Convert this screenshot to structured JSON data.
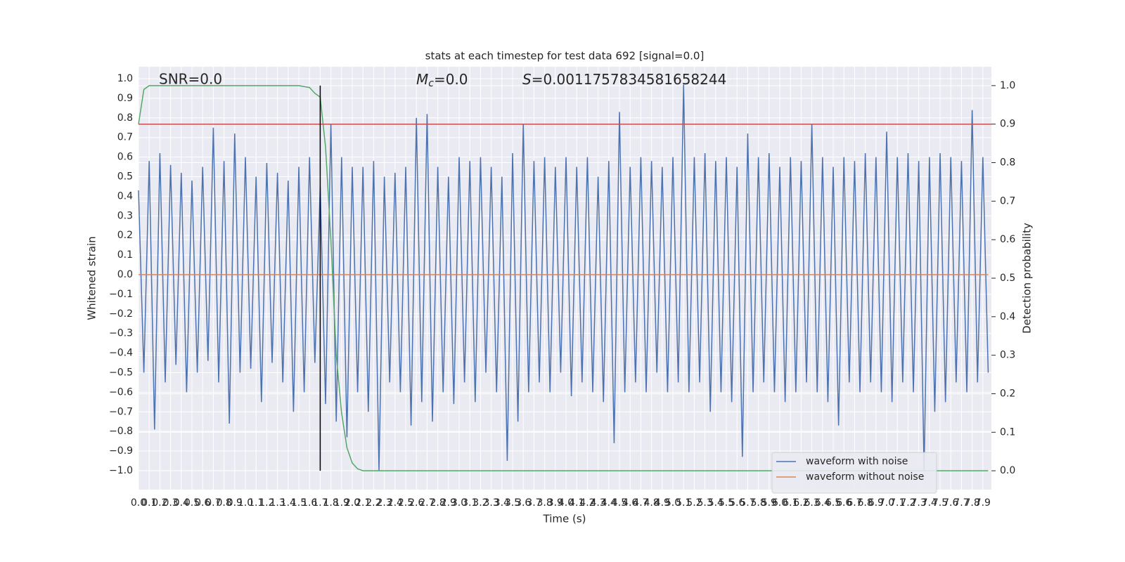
{
  "chart_data": {
    "type": "line",
    "title": "stats at each timestep for test data 692 [signal=0.0]",
    "xlabel": "Time (s)",
    "ylabel": "Whitened strain",
    "y2label": "Detection probability",
    "annotations": [
      {
        "text": "SNR=0.0"
      },
      {
        "symbol": "M",
        "subscript": "c",
        "text": "=0.0"
      },
      {
        "symbol": "S",
        "text": "=0.0011757834581658244"
      }
    ],
    "grid": true,
    "legend": "lower right",
    "xlim": [
      0,
      7.98
    ],
    "ylim": [
      -1.097,
      1.061
    ],
    "y2lim": [
      -0.049,
      1.049
    ],
    "xticks": [
      {
        "value": 0,
        "label": "0.0"
      },
      0.1,
      0.2,
      0.3,
      0.4,
      0.5,
      0.6,
      0.7,
      0.8,
      0.9,
      {
        "value": 1,
        "label": "1.0"
      },
      1.1,
      1.2,
      1.3,
      1.4,
      1.5,
      1.6,
      1.7,
      1.8,
      1.9,
      {
        "value": 2,
        "label": "2.0"
      },
      2.1,
      2.2,
      2.3,
      2.4,
      2.5,
      2.6,
      2.7,
      2.8,
      2.9,
      {
        "value": 3,
        "label": "3.0"
      },
      3.1,
      3.2,
      3.3,
      3.4,
      3.5,
      3.6,
      3.7,
      3.8,
      3.9,
      {
        "value": 4,
        "label": "4.0"
      },
      4.1,
      4.2,
      4.3,
      4.4,
      4.5,
      4.6,
      4.7,
      4.8,
      4.9,
      {
        "value": 5,
        "label": "5.0"
      },
      5.1,
      5.2,
      5.3,
      5.4,
      5.5,
      5.6,
      5.7,
      5.8,
      5.9,
      {
        "value": 6,
        "label": "6.0"
      },
      6.1,
      6.2,
      6.3,
      6.4,
      6.5,
      6.6,
      6.7,
      6.8,
      6.9,
      {
        "value": 7,
        "label": "7.0"
      },
      7.1,
      7.2,
      7.3,
      7.4,
      7.5,
      7.6,
      7.7,
      7.8,
      7.9
    ],
    "yticks": [
      {
        "value": -1,
        "label": "−1.0"
      },
      {
        "value": -0.9,
        "label": "−0.9"
      },
      {
        "value": -0.8,
        "label": "−0.8"
      },
      {
        "value": -0.7,
        "label": "−0.7"
      },
      {
        "value": -0.6,
        "label": "−0.6"
      },
      {
        "value": -0.5,
        "label": "−0.5"
      },
      {
        "value": -0.4,
        "label": "−0.4"
      },
      {
        "value": -0.3,
        "label": "−0.3"
      },
      {
        "value": -0.2,
        "label": "−0.2"
      },
      {
        "value": -0.1,
        "label": "−0.1"
      },
      {
        "value": 0,
        "label": "0.0"
      },
      0.1,
      0.2,
      0.3,
      0.4,
      0.5,
      0.6,
      0.7,
      0.8,
      0.9,
      {
        "value": 1,
        "label": "1.0"
      }
    ],
    "y2ticks": [
      {
        "value": 0,
        "label": "0.0"
      },
      0.1,
      0.2,
      0.3,
      0.4,
      0.5,
      0.6,
      0.7,
      0.8,
      0.9,
      {
        "value": 1,
        "label": "1.0"
      }
    ],
    "hlines": [
      {
        "value": 0.9,
        "axis": "y2",
        "color": "#c44e52"
      }
    ],
    "vlines": [
      {
        "value": 1.7,
        "color": "#000000"
      }
    ],
    "series": [
      {
        "name": "waveform with noise",
        "color": "#4c72b0",
        "x": [
          0,
          0.05,
          0.1,
          0.15,
          0.2,
          0.25,
          0.3,
          0.35,
          0.4,
          0.45,
          0.5,
          0.55,
          0.6,
          0.65,
          0.7,
          0.75,
          0.8,
          0.85,
          0.9,
          0.95,
          1,
          1.05,
          1.1,
          1.15,
          1.2,
          1.25,
          1.3,
          1.35,
          1.4,
          1.45,
          1.5,
          1.55,
          1.6,
          1.65,
          1.7,
          1.75,
          1.8,
          1.85,
          1.9,
          1.95,
          2,
          2.05,
          2.1,
          2.15,
          2.2,
          2.25,
          2.3,
          2.35,
          2.4,
          2.45,
          2.5,
          2.55,
          2.6,
          2.65,
          2.7,
          2.75,
          2.8,
          2.85,
          2.9,
          2.95,
          3,
          3.05,
          3.1,
          3.15,
          3.2,
          3.25,
          3.3,
          3.35,
          3.4,
          3.45,
          3.5,
          3.55,
          3.6,
          3.65,
          3.7,
          3.75,
          3.8,
          3.85,
          3.9,
          3.95,
          4,
          4.05,
          4.1,
          4.15,
          4.2,
          4.25,
          4.3,
          4.35,
          4.4,
          4.45,
          4.5,
          4.55,
          4.6,
          4.65,
          4.7,
          4.75,
          4.8,
          4.85,
          4.9,
          4.95,
          5,
          5.05,
          5.1,
          5.15,
          5.2,
          5.25,
          5.3,
          5.35,
          5.4,
          5.45,
          5.5,
          5.55,
          5.6,
          5.65,
          5.7,
          5.75,
          5.8,
          5.85,
          5.9,
          5.95,
          6,
          6.05,
          6.1,
          6.15,
          6.2,
          6.25,
          6.3,
          6.35,
          6.4,
          6.45,
          6.5,
          6.55,
          6.6,
          6.65,
          6.7,
          6.75,
          6.8,
          6.85,
          6.9,
          6.95,
          7,
          7.05,
          7.1,
          7.15,
          7.2,
          7.25,
          7.3,
          7.35,
          7.4,
          7.45,
          7.5,
          7.55,
          7.6,
          7.65,
          7.7,
          7.75,
          7.8,
          7.85,
          7.9,
          7.95
        ],
        "values": [
          0.43,
          -0.5,
          0.58,
          -0.79,
          0.62,
          -0.55,
          0.56,
          -0.46,
          0.52,
          -0.6,
          0.48,
          -0.5,
          0.55,
          -0.44,
          0.75,
          -0.55,
          0.58,
          -0.76,
          0.72,
          -0.5,
          0.6,
          -0.48,
          0.5,
          -0.65,
          0.57,
          -0.45,
          0.52,
          -0.55,
          0.48,
          -0.7,
          0.55,
          -0.6,
          0.6,
          -0.45,
          0.45,
          -0.66,
          0.77,
          -0.75,
          0.6,
          -0.83,
          0.55,
          -0.6,
          0.55,
          -0.7,
          0.58,
          -1.0,
          0.5,
          -0.55,
          0.52,
          -0.6,
          0.55,
          -0.77,
          0.8,
          -0.65,
          0.82,
          -0.75,
          0.55,
          -0.6,
          0.5,
          -0.66,
          0.6,
          -0.55,
          0.58,
          -0.65,
          0.6,
          -0.5,
          0.55,
          -0.6,
          0.5,
          -0.95,
          0.62,
          -0.75,
          0.77,
          -0.6,
          0.58,
          -0.55,
          0.6,
          -0.6,
          0.55,
          -0.5,
          0.6,
          -0.62,
          0.55,
          -0.55,
          0.6,
          -0.6,
          0.5,
          -0.65,
          0.58,
          -0.86,
          0.83,
          -0.6,
          0.55,
          -0.55,
          0.6,
          -0.6,
          0.58,
          -0.5,
          0.55,
          -0.6,
          0.6,
          -0.55,
          0.97,
          -0.6,
          0.6,
          -0.55,
          0.62,
          -0.7,
          0.58,
          -0.6,
          0.6,
          -0.65,
          0.55,
          -0.93,
          0.72,
          -0.6,
          0.6,
          -0.55,
          0.62,
          -0.6,
          0.55,
          -0.65,
          0.6,
          -0.6,
          0.58,
          -0.55,
          0.77,
          -0.6,
          0.6,
          -0.65,
          0.55,
          -0.77,
          0.6,
          -0.55,
          0.58,
          -0.6,
          0.62,
          -0.55,
          0.6,
          -0.6,
          0.73,
          -0.65,
          0.6,
          -0.55,
          0.62,
          -0.6,
          0.58,
          -1.0,
          0.6,
          -0.7,
          0.62,
          -0.65,
          0.6,
          -0.55,
          0.58,
          -0.6,
          0.84,
          -0.55,
          0.6,
          -0.5
        ]
      },
      {
        "name": "waveform without noise",
        "color": "#dd8452",
        "x": [
          0,
          7.95
        ],
        "values": [
          0,
          0
        ]
      },
      {
        "color": "#55a868",
        "axis": "y2",
        "x": [
          0,
          0.05,
          0.1,
          1.5,
          1.6,
          1.65,
          1.7,
          1.75,
          1.8,
          1.85,
          1.9,
          1.95,
          2,
          2.05,
          2.1,
          7.95
        ],
        "values": [
          0.9,
          0.99,
          1.0,
          1.0,
          0.995,
          0.98,
          0.97,
          0.84,
          0.6,
          0.3,
          0.15,
          0.06,
          0.02,
          0.005,
          0,
          0
        ]
      }
    ]
  }
}
